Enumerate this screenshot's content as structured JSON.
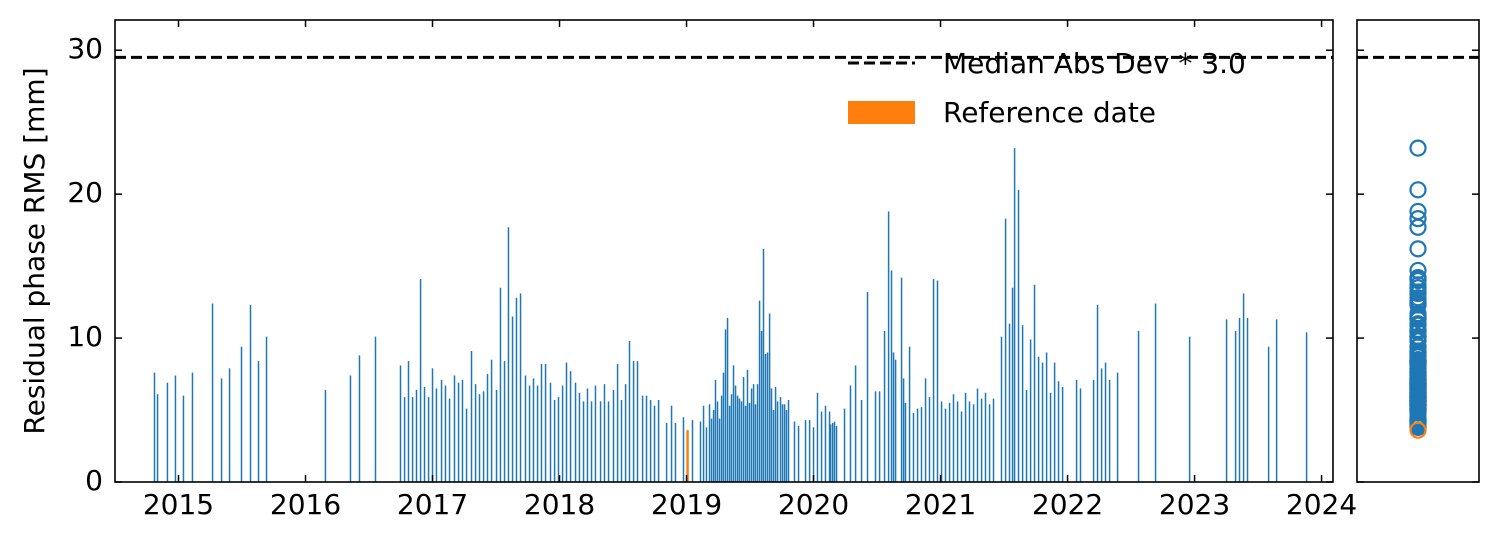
{
  "chart_data": {
    "type": "bar",
    "ylabel": "Residual phase RMS [mm]",
    "color": "#1f77b4",
    "x": [
      2014.811,
      2014.835,
      2014.913,
      2014.976,
      2015.039,
      2015.11,
      2015.268,
      2015.339,
      2015.402,
      2015.496,
      2015.567,
      2015.63,
      2015.693,
      2016.157,
      2016.354,
      2016.425,
      2016.551,
      2016.748,
      2016.78,
      2016.811,
      2016.843,
      2016.874,
      2016.906,
      2016.937,
      2016.969,
      2017.0,
      2017.031,
      2017.071,
      2017.102,
      2017.134,
      2017.173,
      2017.205,
      2017.236,
      2017.268,
      2017.307,
      2017.339,
      2017.37,
      2017.402,
      2017.433,
      2017.465,
      2017.504,
      2017.535,
      2017.567,
      2017.598,
      2017.63,
      2017.661,
      2017.693,
      2017.732,
      2017.764,
      2017.795,
      2017.827,
      2017.858,
      2017.89,
      2017.929,
      2017.961,
      2017.992,
      2018.024,
      2018.055,
      2018.087,
      2018.126,
      2018.157,
      2018.189,
      2018.22,
      2018.252,
      2018.283,
      2018.323,
      2018.354,
      2018.386,
      2018.425,
      2018.457,
      2018.488,
      2018.52,
      2018.551,
      2018.583,
      2018.614,
      2018.654,
      2018.685,
      2018.717,
      2018.748,
      2018.78,
      2018.843,
      2018.882,
      2018.913,
      2018.976,
      2019.047,
      2019.11,
      2019.134,
      2019.157,
      2019.181,
      2019.197,
      2019.213,
      2019.228,
      2019.244,
      2019.26,
      2019.276,
      2019.291,
      2019.307,
      2019.323,
      2019.339,
      2019.354,
      2019.37,
      2019.386,
      2019.402,
      2019.417,
      2019.433,
      2019.449,
      2019.465,
      2019.48,
      2019.496,
      2019.512,
      2019.528,
      2019.543,
      2019.559,
      2019.575,
      2019.591,
      2019.606,
      2019.622,
      2019.638,
      2019.654,
      2019.669,
      2019.685,
      2019.701,
      2019.717,
      2019.74,
      2019.756,
      2019.772,
      2019.787,
      2019.803,
      2019.85,
      2019.882,
      2019.937,
      2019.969,
      2020.0,
      2020.031,
      2020.063,
      2020.094,
      2020.126,
      2020.134,
      2020.15,
      2020.165,
      2020.181,
      2020.244,
      2020.291,
      2020.331,
      2020.378,
      2020.425,
      2020.488,
      2020.52,
      2020.559,
      2020.591,
      2020.614,
      2020.63,
      2020.646,
      2020.693,
      2020.709,
      2020.724,
      2020.756,
      2020.787,
      2020.819,
      2020.85,
      2020.882,
      2020.913,
      2020.945,
      2020.976,
      2021.008,
      2021.039,
      2021.071,
      2021.102,
      2021.134,
      2021.165,
      2021.197,
      2021.228,
      2021.26,
      2021.291,
      2021.323,
      2021.354,
      2021.386,
      2021.417,
      2021.48,
      2021.512,
      2021.543,
      2021.567,
      2021.583,
      2021.614,
      2021.646,
      2021.677,
      2021.709,
      2021.74,
      2021.772,
      2021.803,
      2021.835,
      2021.866,
      2021.898,
      2021.929,
      2021.961,
      2022.071,
      2022.102,
      2022.205,
      2022.236,
      2022.268,
      2022.299,
      2022.331,
      2022.394,
      2022.559,
      2022.693,
      2022.961,
      2023.252,
      2023.323,
      2023.354,
      2023.386,
      2023.417,
      2023.583,
      2023.646,
      2023.882
    ],
    "values": [
      7.6,
      6.1,
      6.9,
      7.4,
      6.0,
      7.6,
      12.4,
      7.2,
      7.9,
      9.4,
      12.3,
      8.4,
      10.1,
      6.4,
      7.4,
      8.8,
      10.1,
      8.1,
      5.9,
      8.4,
      5.9,
      6.4,
      14.1,
      6.6,
      5.9,
      7.9,
      6.5,
      7.1,
      6.7,
      5.8,
      7.4,
      6.9,
      7.1,
      5.1,
      9.1,
      6.8,
      6.1,
      6.3,
      7.5,
      8.5,
      6.4,
      13.5,
      8.4,
      17.7,
      11.5,
      12.8,
      13.1,
      7.4,
      6.7,
      7.2,
      6.7,
      8.2,
      8.2,
      6.9,
      5.7,
      5.9,
      6.7,
      8.3,
      7.7,
      6.9,
      6.2,
      5.6,
      6.5,
      5.6,
      6.7,
      5.6,
      6.8,
      5.6,
      6.4,
      8.2,
      5.7,
      6.8,
      9.8,
      8.4,
      8.4,
      6.0,
      6.0,
      5.7,
      5.3,
      5.7,
      4.1,
      5.3,
      4.1,
      4.5,
      4.3,
      4.2,
      5.3,
      3.8,
      5.4,
      4.4,
      5.0,
      7.1,
      5.6,
      4.4,
      6.0,
      7.6,
      10.6,
      11.4,
      5.3,
      6.1,
      8.1,
      6.7,
      6.0,
      5.8,
      5.6,
      7.3,
      5.3,
      7.8,
      5.5,
      6.5,
      6.8,
      5.4,
      6.8,
      12.6,
      10.5,
      16.2,
      8.9,
      9.0,
      11.7,
      6.5,
      5.0,
      6.6,
      5.6,
      5.9,
      5.4,
      5.4,
      5.0,
      5.7,
      4.2,
      3.9,
      4.3,
      4.3,
      3.8,
      6.2,
      4.9,
      5.3,
      4.9,
      4.0,
      4.1,
      4.2,
      3.9,
      5.1,
      6.7,
      8.1,
      5.7,
      13.2,
      6.3,
      6.3,
      10.5,
      18.8,
      14.7,
      9.0,
      8.5,
      14.2,
      7.2,
      5.5,
      9.4,
      4.8,
      5.1,
      5.2,
      7.2,
      5.9,
      14.1,
      14.0,
      5.6,
      5.1,
      5.5,
      6.1,
      5.6,
      4.9,
      6.2,
      5.6,
      5.4,
      6.5,
      5.8,
      6.2,
      5.4,
      5.8,
      10.1,
      18.3,
      11.0,
      13.5,
      23.2,
      20.3,
      10.9,
      6.4,
      9.9,
      13.7,
      8.7,
      8.3,
      9.0,
      6.2,
      8.3,
      7.0,
      6.6,
      7.1,
      6.5,
      7.1,
      12.3,
      7.9,
      8.3,
      7.1,
      7.6,
      10.5,
      12.4,
      10.1,
      11.3,
      10.5,
      11.4,
      13.1,
      11.4,
      9.4,
      11.3,
      10.4
    ],
    "reference": {
      "name": "Reference date",
      "x": 2019.008,
      "value": 3.6,
      "color": "#ff7f0e"
    },
    "threshold": {
      "name": "Median Abs Dev * 3.0",
      "value": 29.5
    },
    "xlim": [
      2014.5,
      2024.09
    ],
    "xticks": [
      2015,
      2016,
      2017,
      2018,
      2019,
      2020,
      2021,
      2022,
      2023,
      2024
    ],
    "ylim": [
      0,
      32.1
    ],
    "yticks": [
      0,
      10,
      20,
      30
    ],
    "legend": "upper right",
    "grid": false
  }
}
